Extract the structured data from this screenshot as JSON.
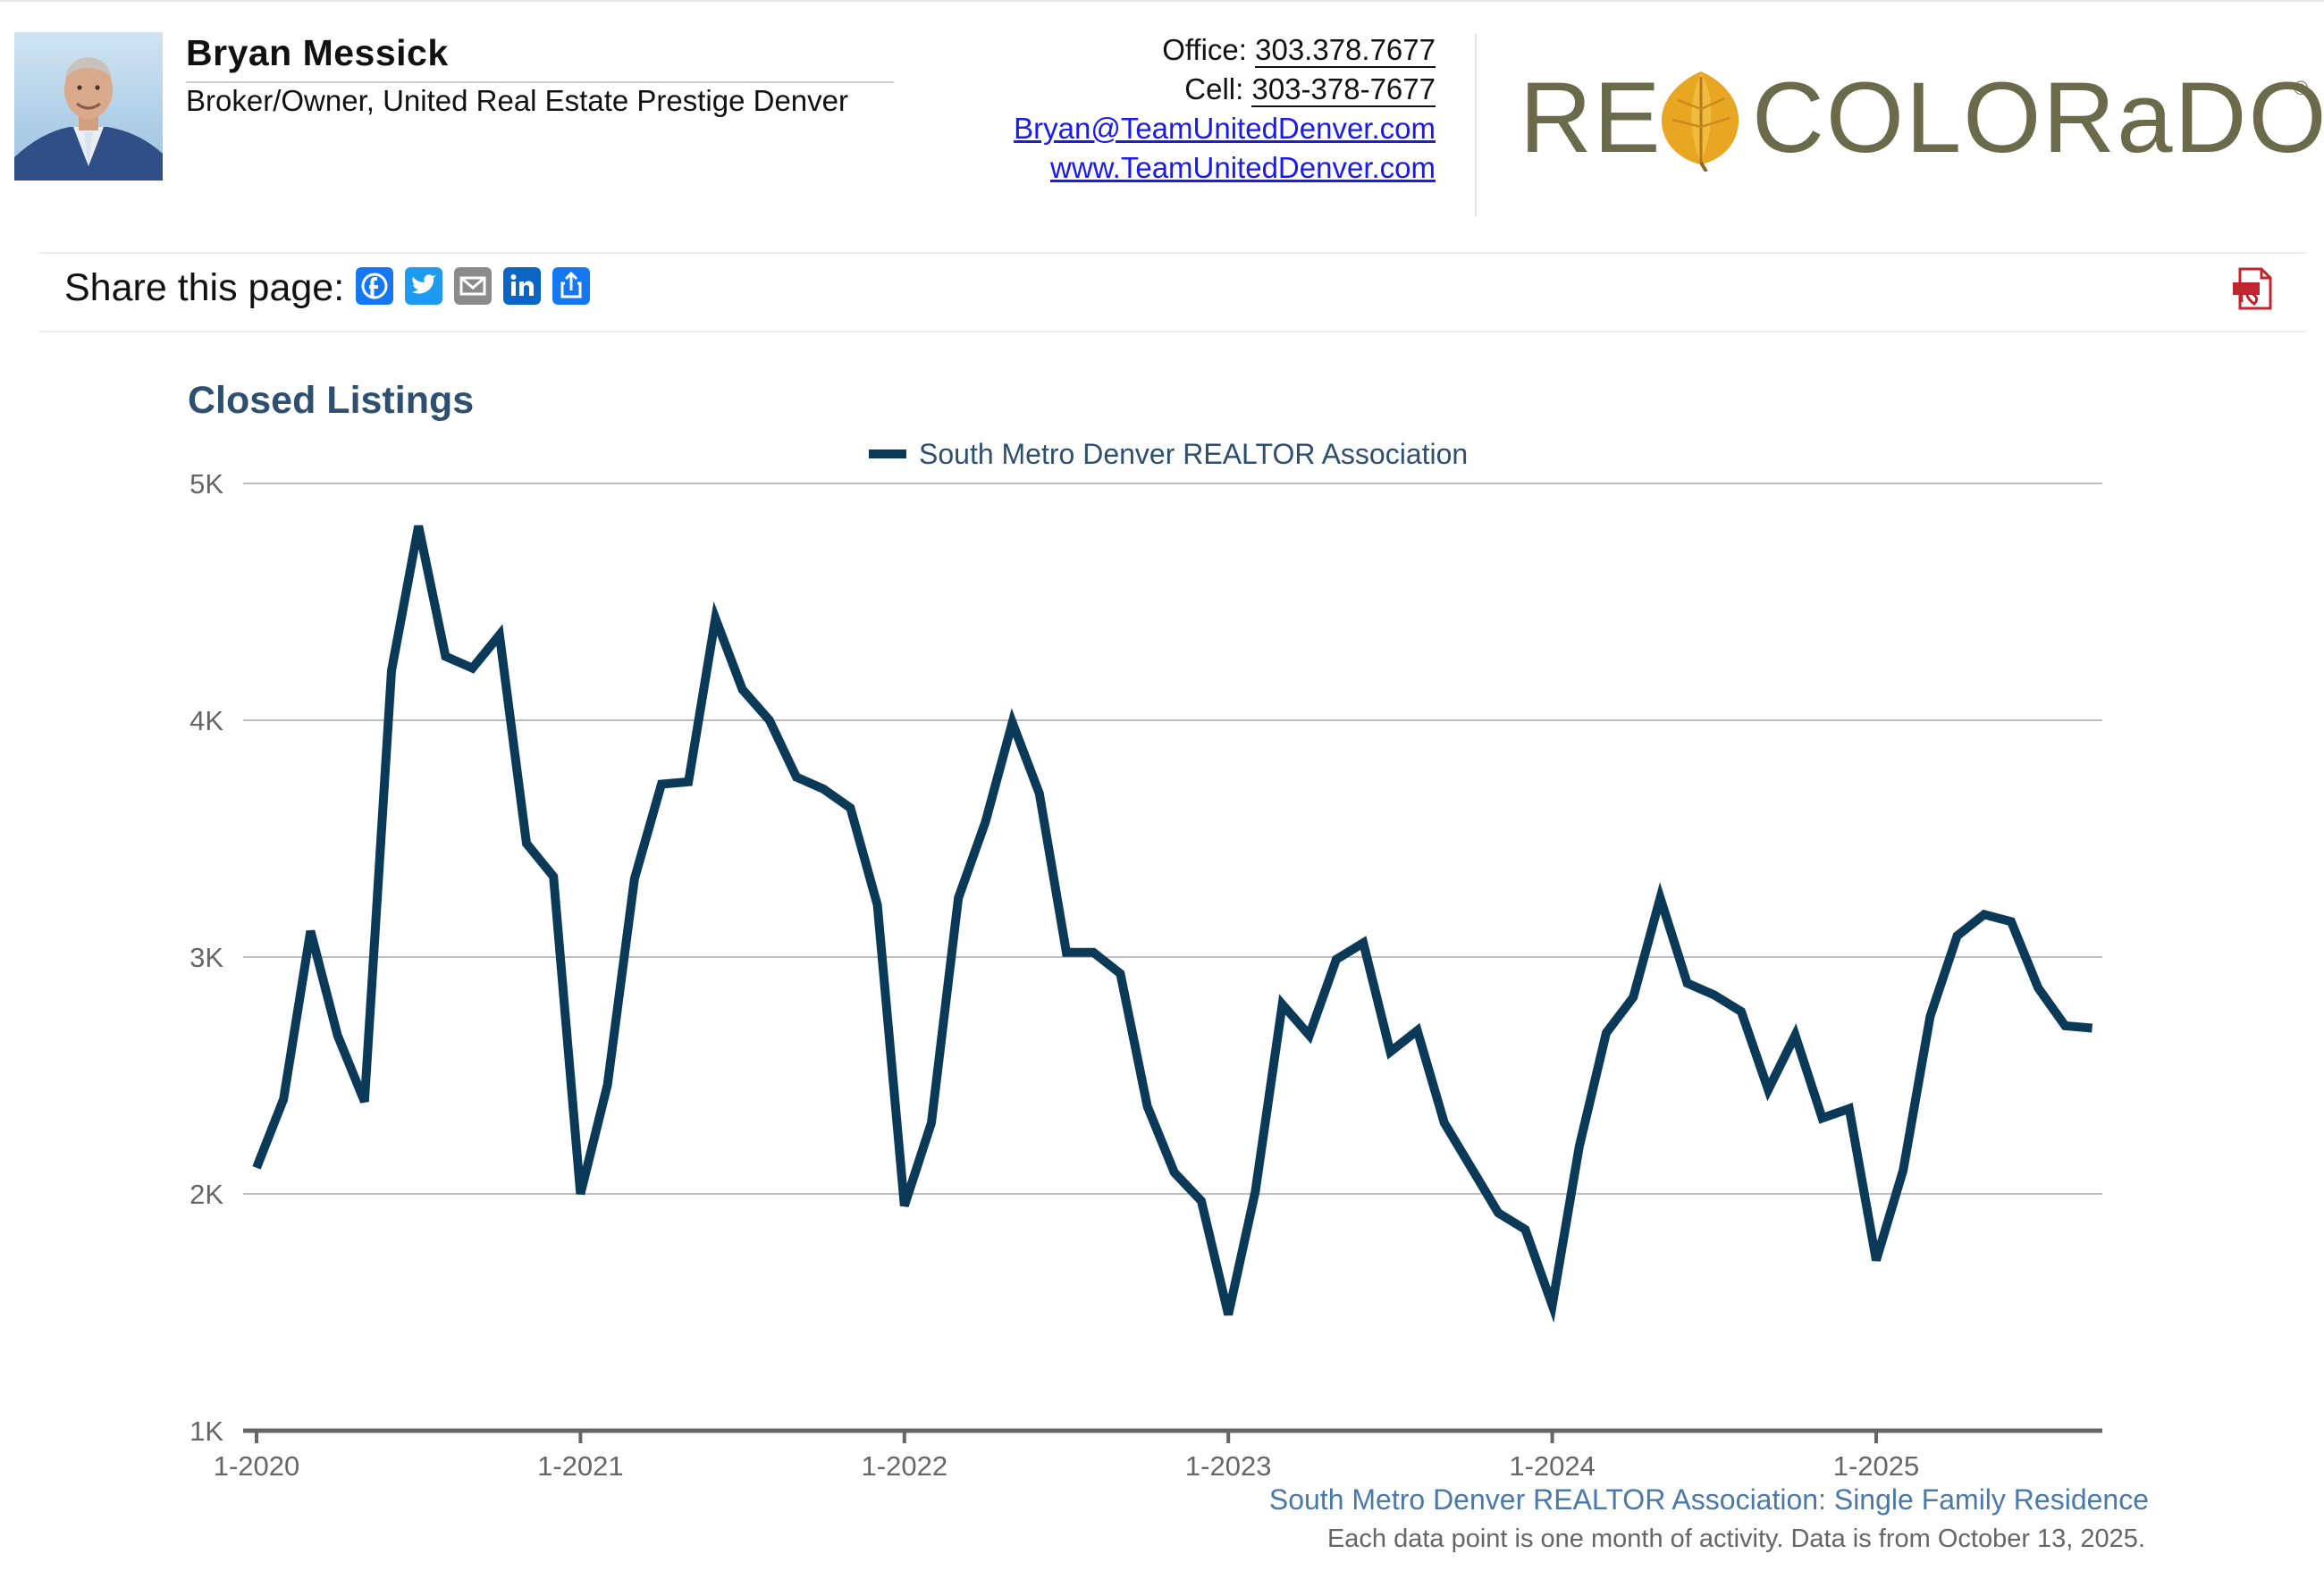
{
  "agent": {
    "name": "Bryan Messick",
    "title": "Broker/Owner, United Real Estate Prestige Denver"
  },
  "contact": {
    "office_label": "Office:",
    "office_phone": "303.378.7677",
    "cell_label": "Cell:",
    "cell_phone": "303-378-7677",
    "email": "Bryan@TeamUnitedDenver.com",
    "website": "www.TeamUnitedDenver.com"
  },
  "brand": {
    "left": "RE",
    "right": "COLORaDO",
    "reg": "®",
    "colors": {
      "text": "#6b6b4b",
      "leaf": "#e8a623"
    }
  },
  "share": {
    "label": "Share this page:",
    "icons": [
      "facebook-icon",
      "twitter-icon",
      "email-icon",
      "linkedin-icon",
      "share-icon"
    ],
    "pdf_icon": "pdf-icon"
  },
  "chart_data": {
    "type": "line",
    "title": "Closed Listings",
    "series": [
      {
        "name": "South Metro Denver REALTOR Association",
        "color": "#0b3a59",
        "values": [
          2110,
          2400,
          3110,
          2670,
          2390,
          4210,
          4820,
          4270,
          4220,
          4360,
          3480,
          3340,
          2000,
          2460,
          3330,
          3730,
          3740,
          4430,
          4130,
          4000,
          3760,
          3710,
          3630,
          3220,
          1950,
          2300,
          3250,
          3570,
          3990,
          3690,
          3020,
          3020,
          2930,
          2370,
          2090,
          1970,
          1490,
          2010,
          2800,
          2670,
          2990,
          3060,
          2600,
          2690,
          2300,
          2110,
          1920,
          1850,
          1530,
          2200,
          2680,
          2830,
          3250,
          2890,
          2840,
          2770,
          2440,
          2670,
          2320,
          2360,
          1720,
          2100,
          2750,
          3090,
          3180,
          3150,
          2870,
          2710,
          2700
        ]
      }
    ],
    "x_start": "1-2020",
    "x_ticks": [
      "1-2020",
      "1-2021",
      "1-2022",
      "1-2023",
      "1-2024",
      "1-2025"
    ],
    "y_ticks": [
      "1K",
      "2K",
      "3K",
      "4K",
      "5K"
    ],
    "ylim": [
      1000,
      5000
    ],
    "grid": true,
    "legend_position": "top-center",
    "source": "South Metro Denver REALTOR Association: Single Family Residence",
    "note": "Each data point is one month of activity. Data is from October 13, 2025."
  }
}
